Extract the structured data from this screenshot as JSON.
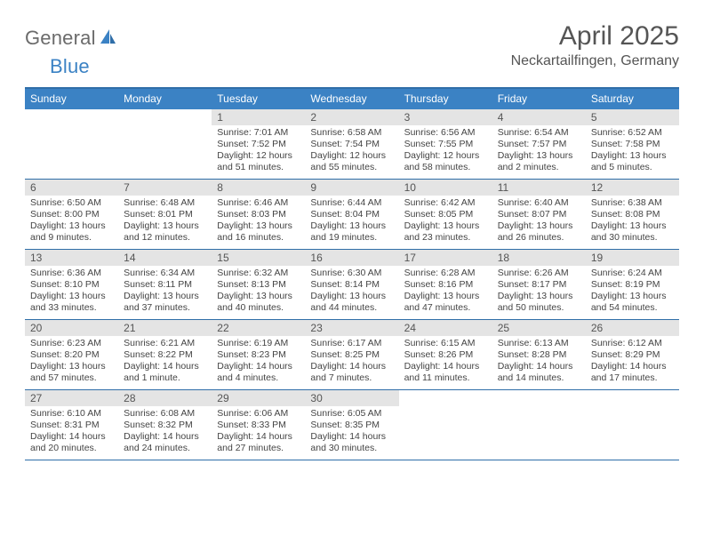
{
  "logo": {
    "general": "General",
    "blue": "Blue"
  },
  "title": "April 2025",
  "location": "Neckartailfingen, Germany",
  "colors": {
    "header_bg": "#3b82c4",
    "border": "#2f6ea8",
    "daynum_bg": "#e4e4e4",
    "text": "#555555"
  },
  "dow": [
    "Sunday",
    "Monday",
    "Tuesday",
    "Wednesday",
    "Thursday",
    "Friday",
    "Saturday"
  ],
  "weeks": [
    [
      null,
      null,
      {
        "n": "1",
        "sr": "Sunrise: 7:01 AM",
        "ss": "Sunset: 7:52 PM",
        "dl": "Daylight: 12 hours and 51 minutes."
      },
      {
        "n": "2",
        "sr": "Sunrise: 6:58 AM",
        "ss": "Sunset: 7:54 PM",
        "dl": "Daylight: 12 hours and 55 minutes."
      },
      {
        "n": "3",
        "sr": "Sunrise: 6:56 AM",
        "ss": "Sunset: 7:55 PM",
        "dl": "Daylight: 12 hours and 58 minutes."
      },
      {
        "n": "4",
        "sr": "Sunrise: 6:54 AM",
        "ss": "Sunset: 7:57 PM",
        "dl": "Daylight: 13 hours and 2 minutes."
      },
      {
        "n": "5",
        "sr": "Sunrise: 6:52 AM",
        "ss": "Sunset: 7:58 PM",
        "dl": "Daylight: 13 hours and 5 minutes."
      }
    ],
    [
      {
        "n": "6",
        "sr": "Sunrise: 6:50 AM",
        "ss": "Sunset: 8:00 PM",
        "dl": "Daylight: 13 hours and 9 minutes."
      },
      {
        "n": "7",
        "sr": "Sunrise: 6:48 AM",
        "ss": "Sunset: 8:01 PM",
        "dl": "Daylight: 13 hours and 12 minutes."
      },
      {
        "n": "8",
        "sr": "Sunrise: 6:46 AM",
        "ss": "Sunset: 8:03 PM",
        "dl": "Daylight: 13 hours and 16 minutes."
      },
      {
        "n": "9",
        "sr": "Sunrise: 6:44 AM",
        "ss": "Sunset: 8:04 PM",
        "dl": "Daylight: 13 hours and 19 minutes."
      },
      {
        "n": "10",
        "sr": "Sunrise: 6:42 AM",
        "ss": "Sunset: 8:05 PM",
        "dl": "Daylight: 13 hours and 23 minutes."
      },
      {
        "n": "11",
        "sr": "Sunrise: 6:40 AM",
        "ss": "Sunset: 8:07 PM",
        "dl": "Daylight: 13 hours and 26 minutes."
      },
      {
        "n": "12",
        "sr": "Sunrise: 6:38 AM",
        "ss": "Sunset: 8:08 PM",
        "dl": "Daylight: 13 hours and 30 minutes."
      }
    ],
    [
      {
        "n": "13",
        "sr": "Sunrise: 6:36 AM",
        "ss": "Sunset: 8:10 PM",
        "dl": "Daylight: 13 hours and 33 minutes."
      },
      {
        "n": "14",
        "sr": "Sunrise: 6:34 AM",
        "ss": "Sunset: 8:11 PM",
        "dl": "Daylight: 13 hours and 37 minutes."
      },
      {
        "n": "15",
        "sr": "Sunrise: 6:32 AM",
        "ss": "Sunset: 8:13 PM",
        "dl": "Daylight: 13 hours and 40 minutes."
      },
      {
        "n": "16",
        "sr": "Sunrise: 6:30 AM",
        "ss": "Sunset: 8:14 PM",
        "dl": "Daylight: 13 hours and 44 minutes."
      },
      {
        "n": "17",
        "sr": "Sunrise: 6:28 AM",
        "ss": "Sunset: 8:16 PM",
        "dl": "Daylight: 13 hours and 47 minutes."
      },
      {
        "n": "18",
        "sr": "Sunrise: 6:26 AM",
        "ss": "Sunset: 8:17 PM",
        "dl": "Daylight: 13 hours and 50 minutes."
      },
      {
        "n": "19",
        "sr": "Sunrise: 6:24 AM",
        "ss": "Sunset: 8:19 PM",
        "dl": "Daylight: 13 hours and 54 minutes."
      }
    ],
    [
      {
        "n": "20",
        "sr": "Sunrise: 6:23 AM",
        "ss": "Sunset: 8:20 PM",
        "dl": "Daylight: 13 hours and 57 minutes."
      },
      {
        "n": "21",
        "sr": "Sunrise: 6:21 AM",
        "ss": "Sunset: 8:22 PM",
        "dl": "Daylight: 14 hours and 1 minute."
      },
      {
        "n": "22",
        "sr": "Sunrise: 6:19 AM",
        "ss": "Sunset: 8:23 PM",
        "dl": "Daylight: 14 hours and 4 minutes."
      },
      {
        "n": "23",
        "sr": "Sunrise: 6:17 AM",
        "ss": "Sunset: 8:25 PM",
        "dl": "Daylight: 14 hours and 7 minutes."
      },
      {
        "n": "24",
        "sr": "Sunrise: 6:15 AM",
        "ss": "Sunset: 8:26 PM",
        "dl": "Daylight: 14 hours and 11 minutes."
      },
      {
        "n": "25",
        "sr": "Sunrise: 6:13 AM",
        "ss": "Sunset: 8:28 PM",
        "dl": "Daylight: 14 hours and 14 minutes."
      },
      {
        "n": "26",
        "sr": "Sunrise: 6:12 AM",
        "ss": "Sunset: 8:29 PM",
        "dl": "Daylight: 14 hours and 17 minutes."
      }
    ],
    [
      {
        "n": "27",
        "sr": "Sunrise: 6:10 AM",
        "ss": "Sunset: 8:31 PM",
        "dl": "Daylight: 14 hours and 20 minutes."
      },
      {
        "n": "28",
        "sr": "Sunrise: 6:08 AM",
        "ss": "Sunset: 8:32 PM",
        "dl": "Daylight: 14 hours and 24 minutes."
      },
      {
        "n": "29",
        "sr": "Sunrise: 6:06 AM",
        "ss": "Sunset: 8:33 PM",
        "dl": "Daylight: 14 hours and 27 minutes."
      },
      {
        "n": "30",
        "sr": "Sunrise: 6:05 AM",
        "ss": "Sunset: 8:35 PM",
        "dl": "Daylight: 14 hours and 30 minutes."
      },
      null,
      null,
      null
    ]
  ]
}
